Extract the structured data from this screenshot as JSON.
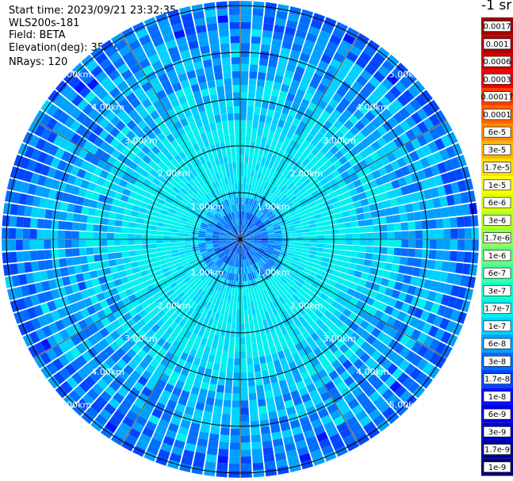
{
  "header": {
    "start_time": "Start time: 2023/09/21 23:32:35",
    "instrument": "WLS200s-181",
    "field": "Field: BETA",
    "elevation": "Elevation(deg): 35.30",
    "nrays": "NRays: 120"
  },
  "colorbar": {
    "unit_label": "-1 sr",
    "entries": [
      {
        "label": "0.0017",
        "color": "#a00000"
      },
      {
        "label": "0.001",
        "color": "#b40000"
      },
      {
        "label": "0.0006",
        "color": "#d20000"
      },
      {
        "label": "0.0003",
        "color": "#f00000"
      },
      {
        "label": "0.00017",
        "color": "#ff3c00"
      },
      {
        "label": "0.0001",
        "color": "#ff6400"
      },
      {
        "label": "6e-5",
        "color": "#ff8c00"
      },
      {
        "label": "3e-5",
        "color": "#ffb400"
      },
      {
        "label": "1.7e-5",
        "color": "#ffdc00"
      },
      {
        "label": "1e-5",
        "color": "#ffff00"
      },
      {
        "label": "6e-6",
        "color": "#dcff00"
      },
      {
        "label": "3e-6",
        "color": "#b4ff28"
      },
      {
        "label": "1.7e-6",
        "color": "#8cff50"
      },
      {
        "label": "1e-6",
        "color": "#64ff78"
      },
      {
        "label": "6e-7",
        "color": "#3cffa0"
      },
      {
        "label": "3e-7",
        "color": "#14ffc8"
      },
      {
        "label": "1.7e-7",
        "color": "#00f0f0"
      },
      {
        "label": "1e-7",
        "color": "#00d2ff"
      },
      {
        "label": "6e-8",
        "color": "#00a0ff"
      },
      {
        "label": "3e-8",
        "color": "#006eff"
      },
      {
        "label": "1.7e-8",
        "color": "#0046ff"
      },
      {
        "label": "1e-8",
        "color": "#0014ff"
      },
      {
        "label": "6e-9",
        "color": "#0000e6"
      },
      {
        "label": "3e-9",
        "color": "#0000c8"
      },
      {
        "label": "1.7e-9",
        "color": "#0000a0"
      },
      {
        "label": "1e-9",
        "color": "#000078"
      }
    ]
  },
  "chart_data": {
    "type": "heatmap",
    "projection": "polar-ppi",
    "field": "BETA",
    "elevation_deg": 35.3,
    "n_rays": 120,
    "range_rings_km": [
      1,
      2,
      3,
      4,
      5
    ],
    "ring_labels": [
      "1.00km",
      "2.00km",
      "3.00km",
      "4.00km",
      "5.00km"
    ],
    "max_range_km": 5.1,
    "radial_spokes_deg": [
      0,
      30,
      60,
      90,
      120,
      150,
      180,
      210,
      240,
      270,
      300,
      330
    ],
    "range_bins": 34,
    "value_by_range_km": [
      {
        "range_km": 0.5,
        "value": 3e-08
      },
      {
        "range_km": 1.2,
        "value": 1.7e-07
      },
      {
        "range_km": 2.0,
        "value": 1.7e-07
      },
      {
        "range_km": 3.0,
        "value": 1e-07
      },
      {
        "range_km": 4.0,
        "value": 6e-08
      },
      {
        "range_km": 5.0,
        "value": 3e-08
      }
    ]
  }
}
